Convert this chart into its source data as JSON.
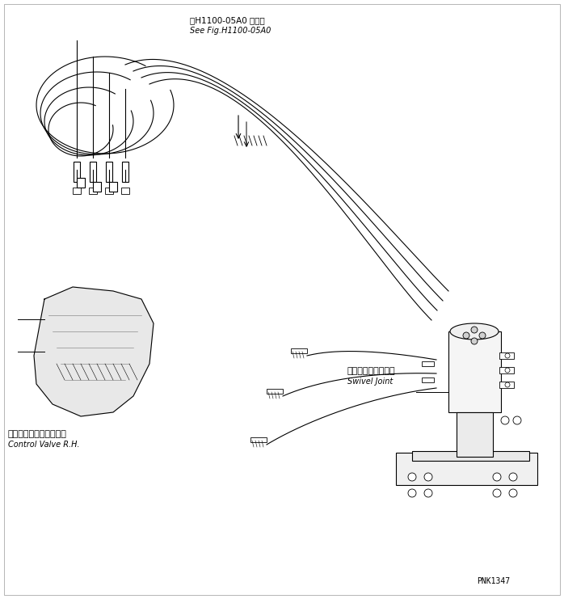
{
  "bg_color": "#ffffff",
  "line_color": "#000000",
  "fig_width": 6.98,
  "fig_height": 7.41,
  "dpi": 100,
  "title_jp": "第H1100-05A0 図参照",
  "title_en": "See Fig.H1100-05A0",
  "label1_jp": "コントロールバルブ右側",
  "label1_en": "Control Valve R.H.",
  "label2_jp": "スイベルジョイント",
  "label2_en": "Swivel Joint",
  "part_number": "PNK1347",
  "font_size_title": 7,
  "font_size_label": 7,
  "font_size_part": 7
}
